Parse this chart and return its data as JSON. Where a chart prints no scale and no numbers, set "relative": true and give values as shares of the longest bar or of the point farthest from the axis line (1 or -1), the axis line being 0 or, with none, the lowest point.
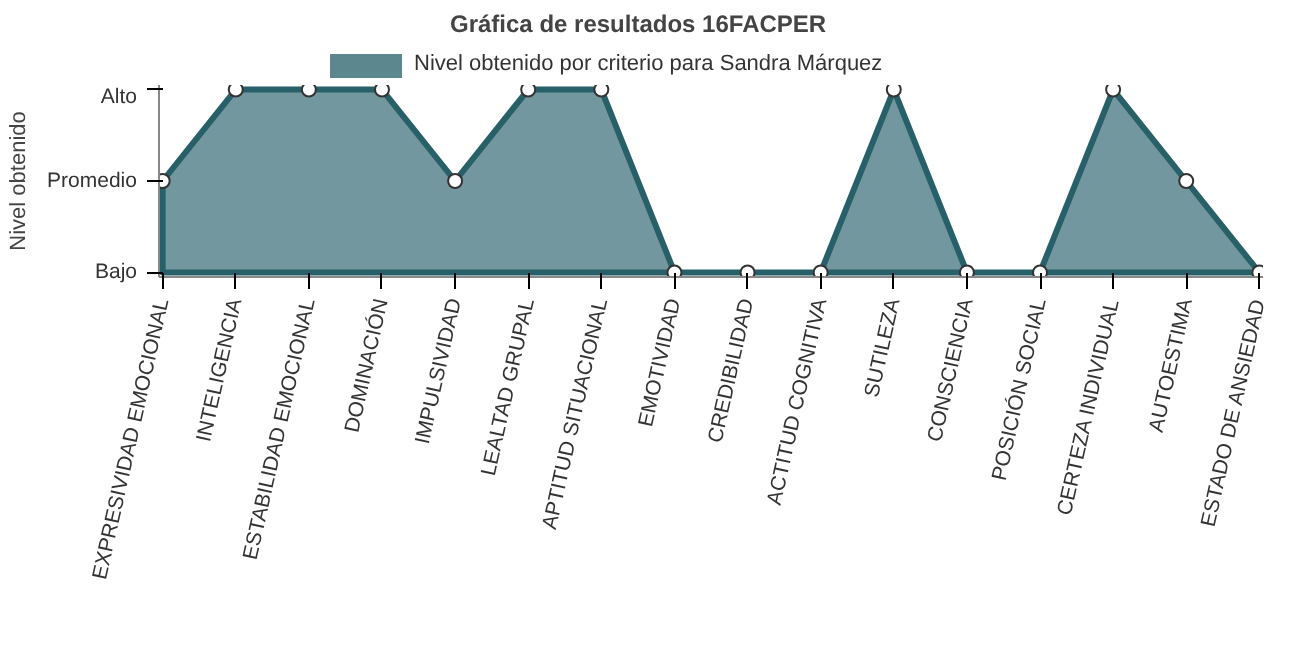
{
  "chart_data": {
    "type": "area",
    "title": "Gráfica de resultados 16FACPER",
    "ylabel": "Nivel obtenido",
    "categories": [
      "EXPRESIVIDAD EMOCIONAL",
      "INTELIGENCIA",
      "ESTABILIDAD EMOCIONAL",
      "DOMINACIÓN",
      "IMPULSIVIDAD",
      "LEALTAD GRUPAL",
      "APTITUD SITUACIONAL",
      "EMOTIVIDAD",
      "CREDIBILIDAD",
      "ACTITUD COGNITIVA",
      "SUTILEZA",
      "CONSCIENCIA",
      "POSICIÓN SOCIAL",
      "CERTEZA INDIVIDUAL",
      "AUTOESTIMA",
      "ESTADO DE ANSIEDAD"
    ],
    "series": [
      {
        "name": "Nivel obtenido por criterio para Sandra Márquez",
        "color": "#28606a",
        "values": [
          0.5,
          1,
          1,
          1,
          0.5,
          1,
          1,
          0,
          0,
          0,
          1,
          0,
          0,
          1,
          0.5,
          0
        ]
      }
    ],
    "relative": true,
    "annotations": [
      "Bajo",
      "Promedio",
      "Alto"
    ],
    "legend": "top",
    "marker": "circle"
  }
}
